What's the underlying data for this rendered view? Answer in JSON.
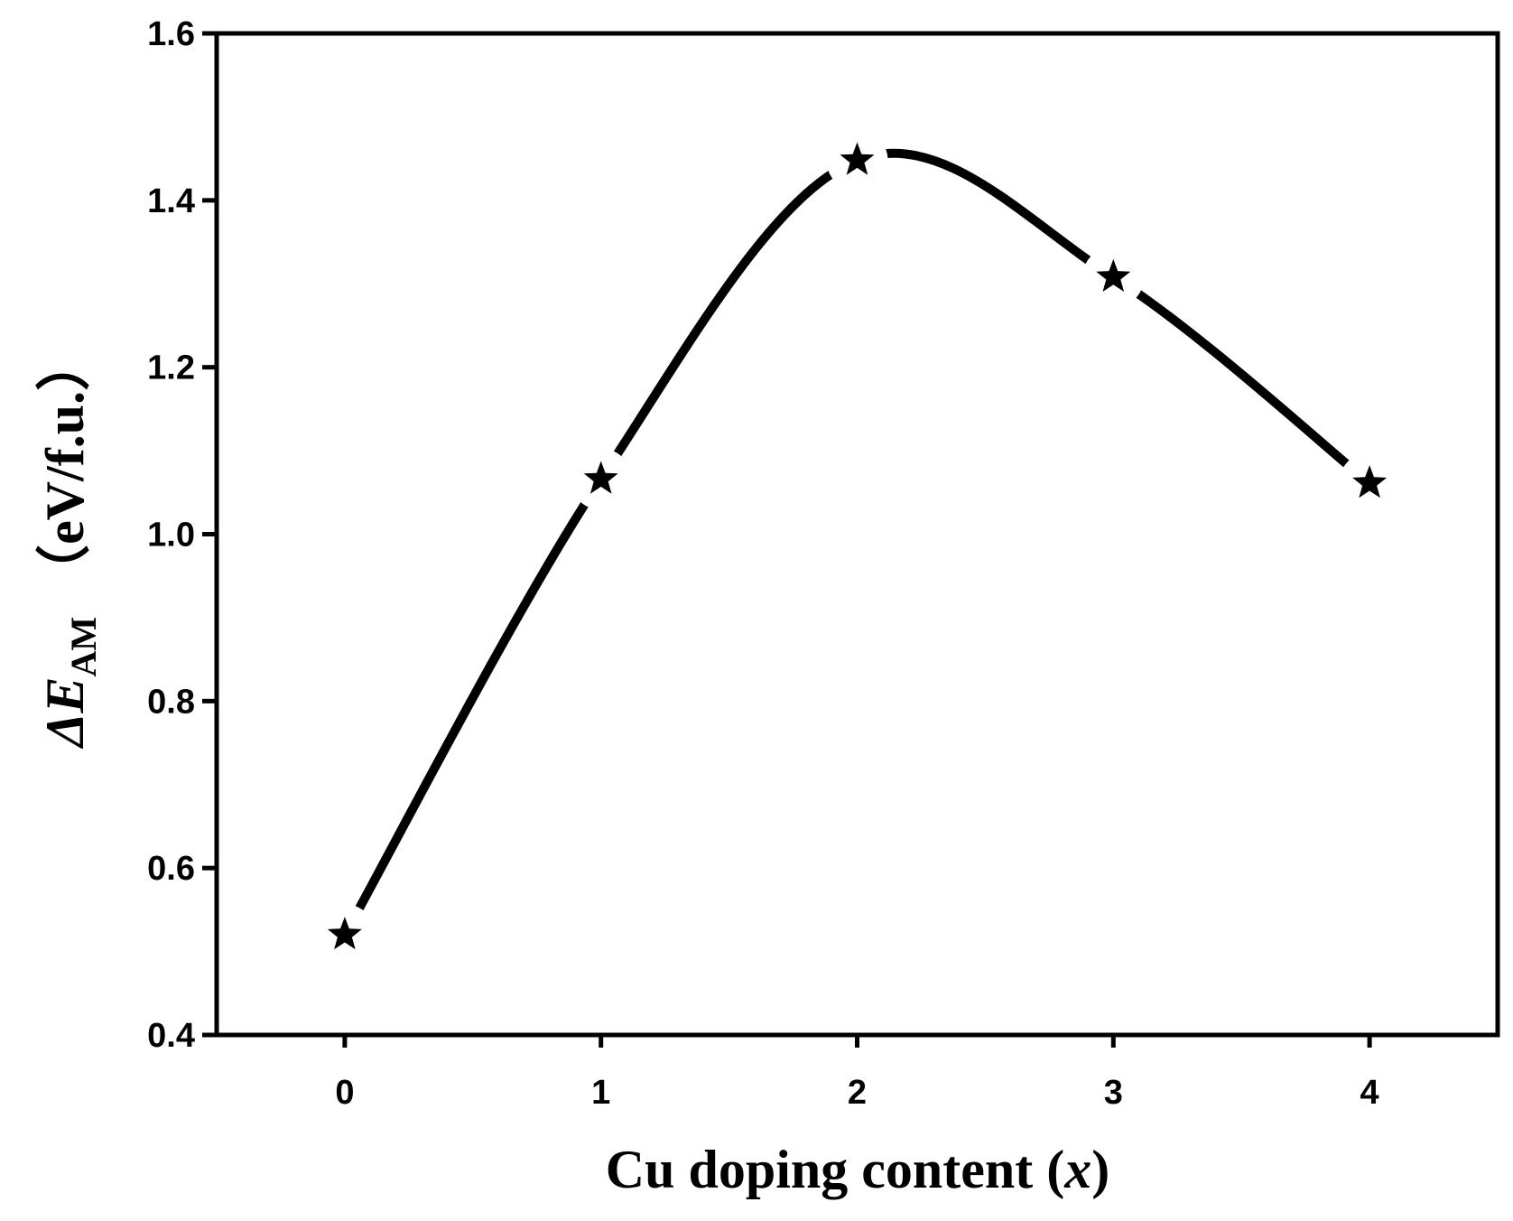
{
  "chart_data": {
    "type": "line",
    "x_label": {
      "text": "Cu doping content (",
      "italic": "x",
      "close": ")"
    },
    "y_label": {
      "symbol": "ΔE",
      "subscript": "AM",
      "unit": "（eV/f.u.）"
    },
    "x": [
      0,
      1,
      2,
      3,
      4
    ],
    "series": [
      {
        "name": "ΔE_AM",
        "color": "#000000",
        "values": [
          0.52,
          1.066,
          1.448,
          1.308,
          1.061
        ]
      }
    ],
    "xlim": [
      -0.5,
      4.5
    ],
    "xticks": [
      0,
      1,
      2,
      3,
      4
    ],
    "ylim": [
      0.4,
      1.6
    ],
    "yticks": [
      {
        "value": 0.4,
        "label": "0.4"
      },
      {
        "value": 0.6,
        "label": "0.6"
      },
      {
        "value": 0.8,
        "label": "0.8"
      },
      {
        "value": 1.0,
        "label": "1.0"
      },
      {
        "value": 1.2,
        "label": "1.2"
      },
      {
        "value": 1.4,
        "label": "1.4"
      },
      {
        "value": 1.6,
        "label": "1.6"
      }
    ],
    "grid": false
  }
}
